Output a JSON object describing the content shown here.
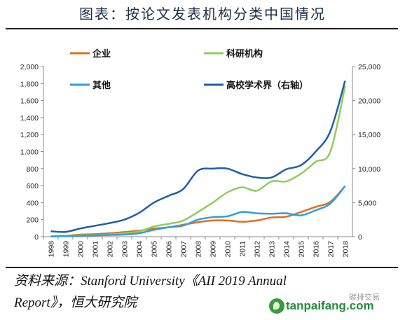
{
  "header": {
    "title": "图表：按论文发表机构分类中国情况"
  },
  "footer": {
    "source_line1": "资料来源：Stanford University《AII 2019 Annual",
    "source_line2": "Report》，恒大研究院"
  },
  "watermark": {
    "text": "tanpaifang.com",
    "faint_text": "碳排交易"
  },
  "chart_data": {
    "type": "line",
    "title": "图表：按论文发表机构分类中国情况",
    "x": [
      "1998",
      "1999",
      "2000",
      "2001",
      "2002",
      "2003",
      "2004",
      "2005",
      "2006",
      "2007",
      "2008",
      "2009",
      "2010",
      "2011",
      "2012",
      "2013",
      "2014",
      "2015",
      "2016",
      "2017",
      "2018"
    ],
    "y_left": {
      "range": [
        0,
        2000
      ],
      "ticks": [
        "0",
        "200",
        "400",
        "600",
        "800",
        "1,000",
        "1,200",
        "1,400",
        "1,600",
        "1,800",
        "2,000"
      ]
    },
    "y_right": {
      "range": [
        0,
        25000
      ],
      "ticks": [
        "0",
        "5,000",
        "10,000",
        "15,000",
        "20,000",
        "25,000"
      ]
    },
    "grid": false,
    "legend_position": "top",
    "series": [
      {
        "name": "企业",
        "axis": "left",
        "color": "#e36c1d",
        "values": [
          5,
          10,
          25,
          30,
          40,
          55,
          70,
          95,
          110,
          140,
          170,
          190,
          190,
          175,
          190,
          225,
          235,
          290,
          350,
          410,
          595
        ]
      },
      {
        "name": "科研机构",
        "axis": "left",
        "color": "#8fcd5d",
        "values": [
          5,
          10,
          15,
          20,
          25,
          40,
          60,
          120,
          150,
          190,
          290,
          400,
          520,
          580,
          540,
          650,
          650,
          740,
          880,
          1000,
          1770
        ]
      },
      {
        "name": "其他",
        "axis": "left",
        "color": "#2f9fdc",
        "values": [
          2,
          5,
          10,
          15,
          20,
          25,
          40,
          80,
          110,
          130,
          200,
          230,
          240,
          290,
          275,
          270,
          275,
          250,
          310,
          390,
          595
        ]
      },
      {
        "name": "高校学术界（右轴）",
        "axis": "right",
        "color": "#1f5fa6",
        "values": [
          800,
          700,
          1200,
          1600,
          2000,
          2500,
          3500,
          5000,
          6000,
          7000,
          9700,
          10000,
          10000,
          9200,
          8700,
          8700,
          9900,
          10500,
          12500,
          15500,
          22900
        ]
      }
    ]
  }
}
